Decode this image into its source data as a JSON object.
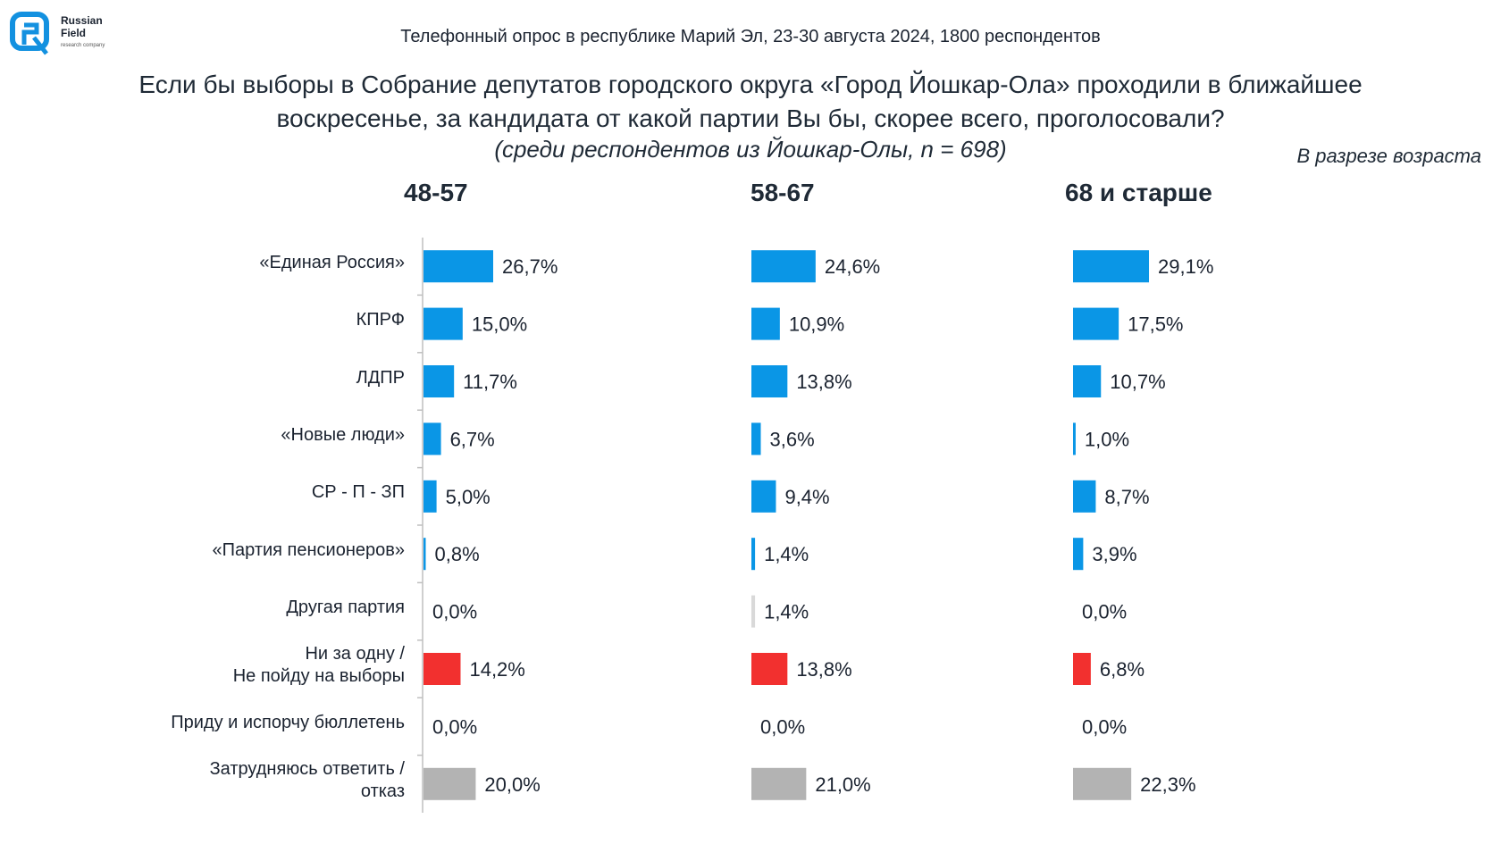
{
  "logo": {
    "name_line1": "Russian",
    "name_line2": "Field",
    "tagline": "research company"
  },
  "header": {
    "subtitle": "Телефонный опрос в республике Марий Эл, 23-30 августа 2024, 1800 респондентов",
    "question": "Если бы выборы в Собрание депутатов городского округа «Город Йошкар-Ола» проходили в ближайшее воскресенье, за кандидата от какой партии Вы бы, скорее всего, проголосовали?",
    "sample": "(среди респондентов из Йошкар-Олы, n = 698)",
    "breakdown": "В разрезе возраста"
  },
  "colors": {
    "party": "#0a96e6",
    "refuse": "#f2302f",
    "hard": "#b3b3b3",
    "other": "#d9d9d9"
  },
  "chart_data": {
    "type": "bar",
    "orientation": "horizontal",
    "categories": [
      "«Единая Россия»",
      "КПРФ",
      "ЛДПР",
      "«Новые люди»",
      "СР - П - ЗП",
      "«Партия пенсионеров»",
      "Другая партия",
      "Ни за одну /\nНе пойду на выборы",
      "Приду и испорчу бюллетень",
      "Затрудняюсь ответить /\nотказ"
    ],
    "category_color_keys": [
      "party",
      "party",
      "party",
      "party",
      "party",
      "party",
      "other",
      "refuse",
      "other",
      "hard"
    ],
    "series": [
      {
        "name": "48-57",
        "values": [
          26.7,
          15.0,
          11.7,
          6.7,
          5.0,
          0.8,
          0.0,
          14.2,
          0.0,
          20.0
        ],
        "labels": [
          "26,7%",
          "15,0%",
          "11,7%",
          "6,7%",
          "5,0%",
          "0,8%",
          "0,0%",
          "14,2%",
          "0,0%",
          "20,0%"
        ]
      },
      {
        "name": "58-67",
        "values": [
          24.6,
          10.9,
          13.8,
          3.6,
          9.4,
          1.4,
          1.4,
          13.8,
          0.0,
          21.0
        ],
        "labels": [
          "24,6%",
          "10,9%",
          "13,8%",
          "3,6%",
          "9,4%",
          "1,4%",
          "1,4%",
          "13,8%",
          "0,0%",
          "21,0%"
        ]
      },
      {
        "name": "68 и старше",
        "values": [
          29.1,
          17.5,
          10.7,
          1.0,
          8.7,
          3.9,
          0.0,
          6.8,
          0.0,
          22.3
        ],
        "labels": [
          "29,1%",
          "17,5%",
          "10,7%",
          "1,0%",
          "8,7%",
          "3,9%",
          "0,0%",
          "6,8%",
          "0,0%",
          "22,3%"
        ]
      }
    ],
    "unit": "%",
    "xlim": [
      0,
      30
    ],
    "grid": false,
    "legend": "none"
  }
}
